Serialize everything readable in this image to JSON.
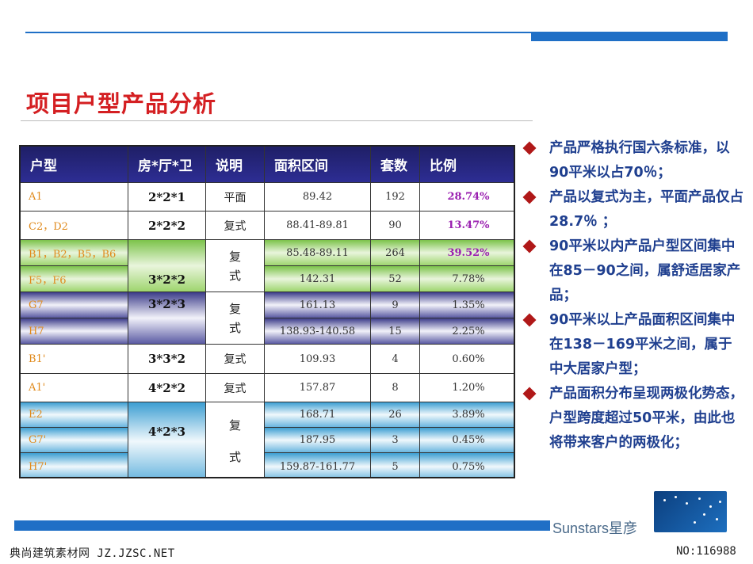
{
  "title": "项目户型产品分析",
  "table": {
    "headers": [
      "户型",
      "房*厅*卫",
      "说明",
      "面积区间",
      "套数",
      "比例"
    ],
    "rows": [
      {
        "type": "A1",
        "layout": "2*2*1",
        "desc": "平面",
        "area": "89.42",
        "count": "192",
        "ratio": "28.74%"
      },
      {
        "type": "C2，D2",
        "layout": "2*2*2",
        "desc": "复式",
        "area": "88.41-89.81",
        "count": "90",
        "ratio": "13.47%"
      },
      {
        "type": "B1，B2，B5，B6",
        "layout": "3*2*2",
        "desc_top": "复",
        "desc_bottom": "式",
        "area": "85.48-89.11",
        "count": "264",
        "ratio": "39.52%"
      },
      {
        "type": "F5，F6",
        "area": "142.31",
        "count": "52",
        "ratio": "7.78%"
      },
      {
        "type": "G7",
        "layout": "3*2*3",
        "desc_top": "复",
        "desc_bottom": "式",
        "area": "161.13",
        "count": "9",
        "ratio": "1.35%"
      },
      {
        "type": "H7",
        "area": "138.93-140.58",
        "count": "15",
        "ratio": "2.25%"
      },
      {
        "type": "B1'",
        "layout": "3*3*2",
        "desc": "复式",
        "area": "109.93",
        "count": "4",
        "ratio": "0.60%"
      },
      {
        "type": "A1'",
        "layout": "4*2*2",
        "desc": "复式",
        "area": "157.87",
        "count": "8",
        "ratio": "1.20%"
      },
      {
        "type": "E2",
        "layout": "4*2*3",
        "desc_top": "复",
        "desc_bottom": "式",
        "area": "168.71",
        "count": "26",
        "ratio": "3.89%"
      },
      {
        "type": "G7'",
        "area": "187.95",
        "count": "3",
        "ratio": "0.45%"
      },
      {
        "type": "H7'",
        "area": "159.87-161.77",
        "count": "5",
        "ratio": "0.75%"
      }
    ]
  },
  "bullets": [
    "产品严格执行国六条标准，以90平米以占70％；",
    "产品以复式为主，平面产品仅占28.7％ ；",
    "90平米以内产品户型区间集中在85－90之间，属舒适居家产品；",
    "90平米以上产品面积区间集中在138－169平米之间，属于中大居家户型；",
    "产品面积分布呈现两极化势态，户型跨度超过50平米，由此也将带来客户的两极化；"
  ],
  "brand": "Sunstars星彦",
  "watermark_left": "典尚建筑素材网 JZ.JZSC.NET",
  "watermark_right": "NO:116988",
  "colors": {
    "accent_blue": "#1f6fc6",
    "title_red": "#d41f22",
    "bullet_blue": "#1f3f8f",
    "bullet_diamond": "#b01818",
    "type_orange": "#e08a1c",
    "ratio_purple": "#9a1fb0"
  }
}
